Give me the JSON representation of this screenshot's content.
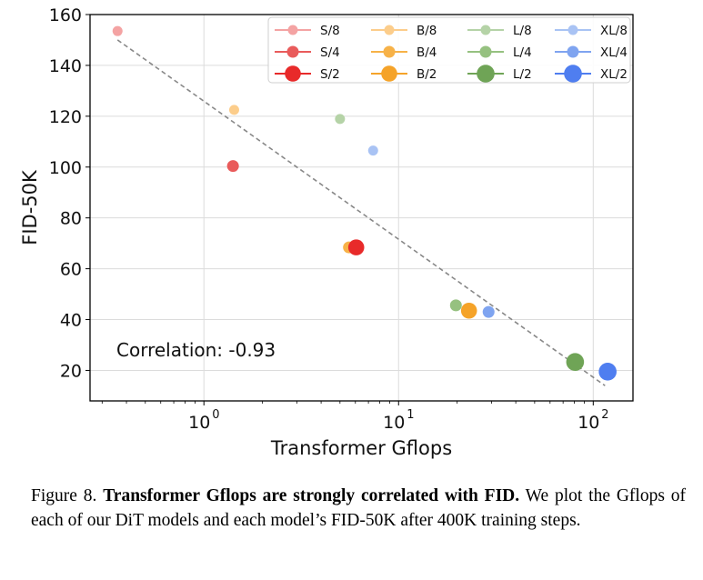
{
  "chart_data": {
    "type": "scatter",
    "xlabel": "Transformer Gflops",
    "ylabel": "FID-50K",
    "xscale": "log",
    "xlim": [
      0.26,
      160
    ],
    "ylim": [
      8,
      160
    ],
    "x_ticks": [
      {
        "value": 1,
        "label": "10",
        "exp": "0"
      },
      {
        "value": 10,
        "label": "10",
        "exp": "1"
      },
      {
        "value": 100,
        "label": "10",
        "exp": "2"
      }
    ],
    "y_ticks": [
      20,
      40,
      60,
      80,
      100,
      120,
      140,
      160
    ],
    "grid": true,
    "legend_position": "top-right",
    "annotation": "Correlation: -0.93",
    "trendline": {
      "x": [
        0.36,
        115
      ],
      "y": [
        150,
        14
      ]
    },
    "series": [
      {
        "name": "S/8",
        "color": "#f4a3a3",
        "size": 1,
        "x": [
          0.36
        ],
        "y": [
          153.5
        ]
      },
      {
        "name": "B/8",
        "color": "#fccd8b",
        "size": 1,
        "x": [
          1.43
        ],
        "y": [
          122.5
        ]
      },
      {
        "name": "L/8",
        "color": "#b5d3a7",
        "size": 1,
        "x": [
          5.0
        ],
        "y": [
          118.9
        ]
      },
      {
        "name": "XL/8",
        "color": "#a9c3f4",
        "size": 1,
        "x": [
          7.4
        ],
        "y": [
          106.5
        ]
      },
      {
        "name": "S/4",
        "color": "#e95b5b",
        "size": 2,
        "x": [
          1.41
        ],
        "y": [
          100.4
        ]
      },
      {
        "name": "B/4",
        "color": "#f7b248",
        "size": 2,
        "x": [
          5.56
        ],
        "y": [
          68.4
        ]
      },
      {
        "name": "L/4",
        "color": "#96c180",
        "size": 2,
        "x": [
          19.7
        ],
        "y": [
          45.6
        ]
      },
      {
        "name": "XL/4",
        "color": "#7fa4f0",
        "size": 2,
        "x": [
          29.0
        ],
        "y": [
          43.0
        ]
      },
      {
        "name": "S/2",
        "color": "#e82a2a",
        "size": 3,
        "x": [
          6.06
        ],
        "y": [
          68.4
        ]
      },
      {
        "name": "B/2",
        "color": "#f5a329",
        "size": 3,
        "x": [
          23.0
        ],
        "y": [
          43.5
        ]
      },
      {
        "name": "L/2",
        "color": "#6fa456",
        "size": 4,
        "x": [
          80.7
        ],
        "y": [
          23.3
        ]
      },
      {
        "name": "XL/2",
        "color": "#4f7ef0",
        "size": 4,
        "x": [
          118.6
        ],
        "y": [
          19.5
        ]
      }
    ],
    "legend_columns": [
      [
        "S/8",
        "S/4",
        "S/2"
      ],
      [
        "B/8",
        "B/4",
        "B/2"
      ],
      [
        "L/8",
        "L/4",
        "L/2"
      ],
      [
        "XL/8",
        "XL/4",
        "XL/2"
      ]
    ]
  },
  "caption": {
    "prefix": "Figure 8. ",
    "bold": "Transformer Gflops are strongly correlated with FID.",
    "text": " We plot the Gflops of each of our DiT models and each model’s FID-50K after 400K training steps."
  }
}
